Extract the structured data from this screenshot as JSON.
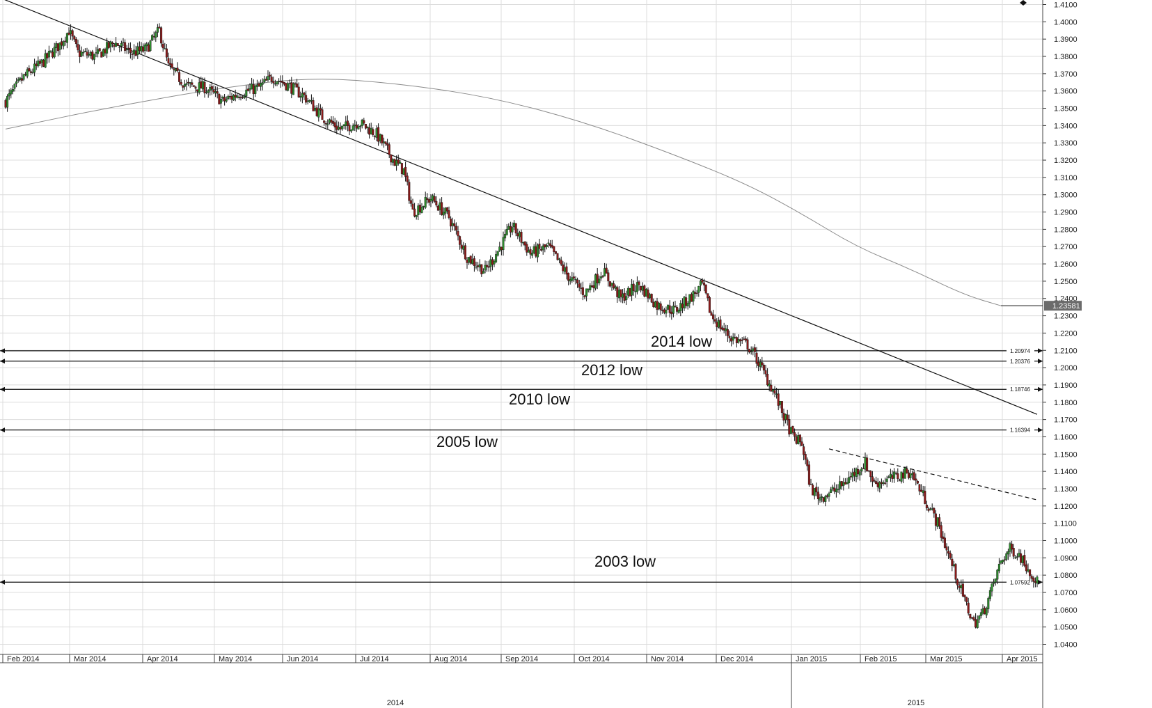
{
  "chart_data": {
    "type": "candlestick",
    "title": "",
    "xlabel": "",
    "ylabel": "",
    "ylim": [
      1.035,
      1.415
    ],
    "y_ticks": [
      "1.4000",
      "1.3900",
      "1.3800",
      "1.3700",
      "1.3600",
      "1.3500",
      "1.3400",
      "1.3300",
      "1.3200",
      "1.3100",
      "1.3000",
      "1.2900",
      "1.2800",
      "1.2700",
      "1.2600",
      "1.2500",
      "1.2400",
      "1.2300",
      "1.2200",
      "1.2100",
      "1.2000",
      "1.1900",
      "1.1800",
      "1.1700",
      "1.1600",
      "1.1500",
      "1.1400",
      "1.1300",
      "1.1200",
      "1.1100",
      "1.1000",
      "1.0900",
      "1.0800",
      "1.0700",
      "1.0600",
      "1.0500",
      "1.0400"
    ],
    "top_tick": "1.4100",
    "month_labels": [
      "Feb 2014",
      "Mar 2014",
      "Apr 2014",
      "May 2014",
      "Jun 2014",
      "Jul 2014",
      "Aug 2014",
      "Sep 2014",
      "Oct 2014",
      "Nov 2014",
      "Dec 2014",
      "Jan 2015",
      "Feb 2015",
      "Mar 2015",
      "Apr 2015"
    ],
    "year_labels": [
      "2014",
      "2015"
    ],
    "grid": true,
    "colors": {
      "up": "#2e8b2e",
      "down": "#8b1a1a",
      "grid": "#dcdcdc",
      "line": "#111111",
      "moving_average": "#8a8a8a",
      "badge": "#6b6b6b"
    },
    "price_path": [
      [
        0,
        1.354
      ],
      [
        2,
        1.368
      ],
      [
        4,
        1.376
      ],
      [
        6,
        1.387
      ],
      [
        7,
        1.395
      ],
      [
        8,
        1.382
      ],
      [
        10,
        1.38
      ],
      [
        12,
        1.388
      ],
      [
        14,
        1.382
      ],
      [
        15.5,
        1.384
      ],
      [
        17,
        1.395
      ],
      [
        18,
        1.374
      ],
      [
        20,
        1.363
      ],
      [
        22,
        1.362
      ],
      [
        24,
        1.354
      ],
      [
        26,
        1.359
      ],
      [
        28,
        1.362
      ],
      [
        29.5,
        1.368
      ],
      [
        31,
        1.364
      ],
      [
        33,
        1.357
      ],
      [
        35,
        1.345
      ],
      [
        37,
        1.338
      ],
      [
        39,
        1.342
      ],
      [
        41,
        1.335
      ],
      [
        43,
        1.319
      ],
      [
        44,
        1.314
      ],
      [
        45,
        1.29
      ],
      [
        47,
        1.298
      ],
      [
        49,
        1.287
      ],
      [
        51,
        1.264
      ],
      [
        53,
        1.256
      ],
      [
        54,
        1.264
      ],
      [
        56,
        1.282
      ],
      [
        58,
        1.266
      ],
      [
        60,
        1.27
      ],
      [
        62,
        1.254
      ],
      [
        64,
        1.243
      ],
      [
        66,
        1.256
      ],
      [
        68,
        1.24
      ],
      [
        70,
        1.248
      ],
      [
        72,
        1.236
      ],
      [
        74,
        1.233
      ],
      [
        76,
        1.242
      ],
      [
        77,
        1.248
      ],
      [
        78,
        1.23
      ],
      [
        80,
        1.218
      ],
      [
        82,
        1.213
      ],
      [
        83,
        1.205
      ],
      [
        84,
        1.195
      ],
      [
        85,
        1.185
      ],
      [
        86,
        1.172
      ],
      [
        87,
        1.16
      ],
      [
        88,
        1.156
      ],
      [
        89,
        1.13
      ],
      [
        90,
        1.125
      ],
      [
        92,
        1.13
      ],
      [
        94,
        1.14
      ],
      [
        95,
        1.145
      ],
      [
        96,
        1.133
      ],
      [
        98,
        1.136
      ],
      [
        100,
        1.14
      ],
      [
        101,
        1.13
      ],
      [
        102,
        1.12
      ],
      [
        103,
        1.11
      ],
      [
        104,
        1.095
      ],
      [
        105,
        1.08
      ],
      [
        106,
        1.065
      ],
      [
        107,
        1.052
      ],
      [
        108,
        1.058
      ],
      [
        109,
        1.072
      ],
      [
        110,
        1.088
      ],
      [
        111,
        1.095
      ],
      [
        112,
        1.092
      ],
      [
        113,
        1.084
      ],
      [
        114,
        1.076
      ]
    ],
    "moving_average": [
      [
        0,
        1.338
      ],
      [
        12,
        1.351
      ],
      [
        24,
        1.362
      ],
      [
        34,
        1.368
      ],
      [
        44,
        1.364
      ],
      [
        54,
        1.356
      ],
      [
        64,
        1.342
      ],
      [
        74,
        1.323
      ],
      [
        82,
        1.306
      ],
      [
        88,
        1.289
      ],
      [
        94,
        1.27
      ],
      [
        100,
        1.257
      ],
      [
        106,
        1.242
      ],
      [
        110,
        1.2358
      ]
    ],
    "trendlines": [
      {
        "name": "downtrend",
        "style": "solid",
        "points": [
          [
            -4,
            1.421
          ],
          [
            114,
            1.173
          ]
        ]
      },
      {
        "name": "downtrend-2015",
        "style": "dashed",
        "points": [
          [
            91,
            1.153
          ],
          [
            114,
            1.1235
          ]
        ]
      }
    ],
    "levels": [
      {
        "value": 1.20974,
        "label": "1.20974",
        "annotation": "2014 low"
      },
      {
        "value": 1.20376,
        "label": "1.20376",
        "annotation": "2012 low"
      },
      {
        "value": 1.18746,
        "label": "1.18746",
        "annotation": "2010 low"
      },
      {
        "value": 1.16394,
        "label": "1.16394",
        "annotation": "2005 low"
      },
      {
        "value": 1.07592,
        "label": "1.07592",
        "annotation": "2003 low"
      }
    ],
    "current_price": {
      "value": 1.2358,
      "label": "1.23581"
    }
  }
}
